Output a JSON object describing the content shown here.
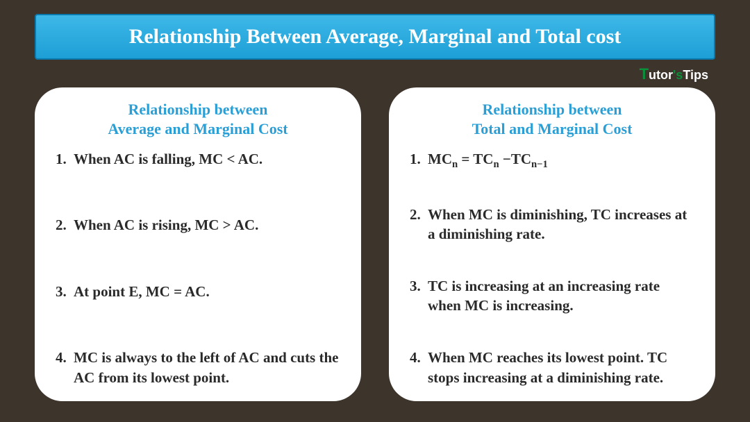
{
  "title": "Relationship Between Average, Marginal and Total cost",
  "logo": {
    "t_char": "T",
    "rest1": "utor",
    "apos": "'s",
    "rest2": "Tips"
  },
  "colors": {
    "page_bg": "#3d342b",
    "title_bg_top": "#3eb8e8",
    "title_bg_bottom": "#1d9fd6",
    "title_border": "#0a7aae",
    "title_text": "#ffffff",
    "card_bg": "#ffffff",
    "card_title": "#2a9fd6",
    "body_text": "#2a2a2a",
    "logo_accent": "#0a8f3a"
  },
  "left_card": {
    "title_line1": "Relationship between",
    "title_line2": "Average and Marginal Cost",
    "items": [
      {
        "num": "1.",
        "text": "When AC is falling, MC < AC."
      },
      {
        "num": "2.",
        "text": "When AC is rising, MC > AC."
      },
      {
        "num": "3.",
        "text": "At point E, MC = AC."
      },
      {
        "num": "4.",
        "text": "MC is always to the left of AC and cuts the AC from its lowest point."
      }
    ]
  },
  "right_card": {
    "title_line1": "Relationship between",
    "title_line2": "Total and Marginal Cost",
    "items": [
      {
        "num": "1.",
        "html": "MC<sub>n</sub> = TC<sub>n</sub> −TC<sub>n−1</sub>"
      },
      {
        "num": "2.",
        "text": "When MC is diminishing, TC increases at a diminishing rate."
      },
      {
        "num": "3.",
        "text": "TC is increasing at an increasing rate when MC is increasing."
      },
      {
        "num": "4.",
        "text": "When MC reaches its lowest point. TC stops increasing at a diminishing rate."
      }
    ]
  }
}
